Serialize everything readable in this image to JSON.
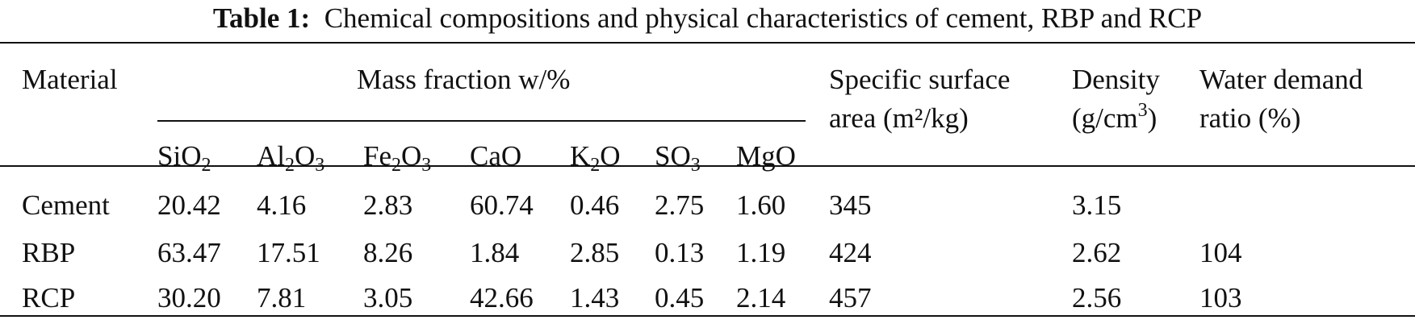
{
  "caption": {
    "label": "Table 1:",
    "text": "Chemical compositions and physical characteristics of cement, RBP and RCP"
  },
  "headers": {
    "material": "Material",
    "mass_fraction": "Mass fraction w/%",
    "ssa_line1": "Specific surface",
    "ssa_line2": "area (m²/kg)",
    "density_line1": "Density",
    "density_line2_pre": "(g/cm",
    "density_line2_sup": "3",
    "density_line2_post": ")",
    "water_line1": "Water demand",
    "water_line2": "ratio (%)"
  },
  "oxides": [
    {
      "base1": "SiO",
      "sub1": "2",
      "base2": "",
      "sub2": ""
    },
    {
      "base1": "Al",
      "sub1": "2",
      "base2": "O",
      "sub2": "3"
    },
    {
      "base1": "Fe",
      "sub1": "2",
      "base2": "O",
      "sub2": "3"
    },
    {
      "base1": "CaO",
      "sub1": "",
      "base2": "",
      "sub2": ""
    },
    {
      "base1": "K",
      "sub1": "2",
      "base2": "O",
      "sub2": ""
    },
    {
      "base1": "SO",
      "sub1": "3",
      "base2": "",
      "sub2": ""
    },
    {
      "base1": "MgO",
      "sub1": "",
      "base2": "",
      "sub2": ""
    }
  ],
  "rows": [
    {
      "material": "Cement",
      "mass": [
        "20.42",
        "4.16",
        "2.83",
        "60.74",
        "0.46",
        "2.75",
        "1.60"
      ],
      "ssa": "345",
      "density": "3.15",
      "water": ""
    },
    {
      "material": "RBP",
      "mass": [
        "63.47",
        "17.51",
        "8.26",
        "1.84",
        "2.85",
        "0.13",
        "1.19"
      ],
      "ssa": "424",
      "density": "2.62",
      "water": "104"
    },
    {
      "material": "RCP",
      "mass": [
        "30.20",
        "7.81",
        "3.05",
        "42.66",
        "1.43",
        "0.45",
        "2.14"
      ],
      "ssa": "457",
      "density": "2.56",
      "water": "103"
    }
  ]
}
